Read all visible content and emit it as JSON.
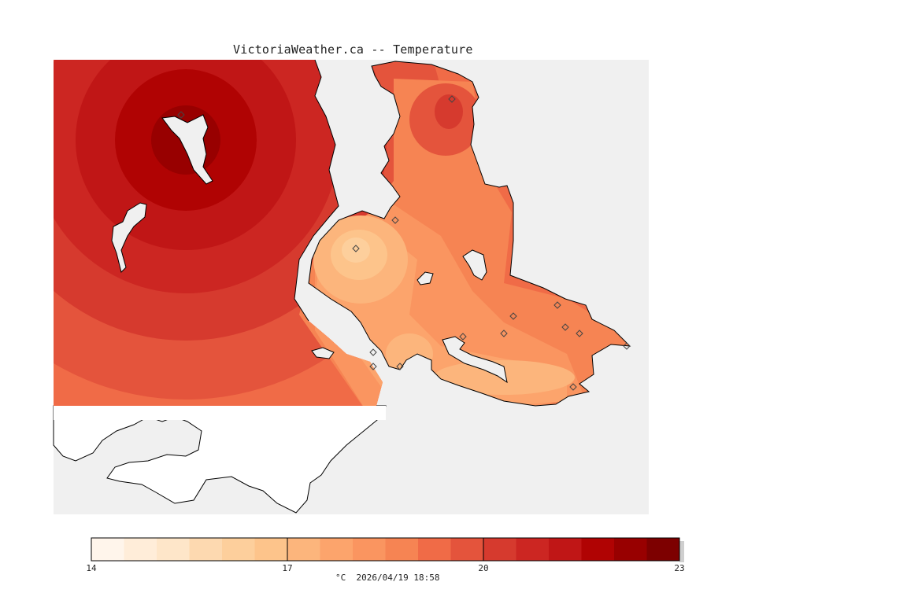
{
  "title": "VictoriaWeather.ca -- Temperature",
  "legend": {
    "ticks": [
      "14",
      "17",
      "20",
      "23"
    ],
    "unit": "°C",
    "timestamp": "2026/04/19 18:58",
    "colors": [
      "#fff5eb",
      "#ffedd9",
      "#fee6c9",
      "#fdd9b0",
      "#fdcf9c",
      "#fdc48b",
      "#fcb57c",
      "#fca46c",
      "#fa9560",
      "#f68453",
      "#f06b47",
      "#e4543c",
      "#d63a2e",
      "#cc2622",
      "#c01616",
      "#b00303",
      "#980000",
      "#7d0000"
    ]
  },
  "map": {
    "ocean_color": "#f0f0f0",
    "land_outside_color": "#ffffff",
    "coast_color": "#000000",
    "station_marker": "diamond"
  }
}
